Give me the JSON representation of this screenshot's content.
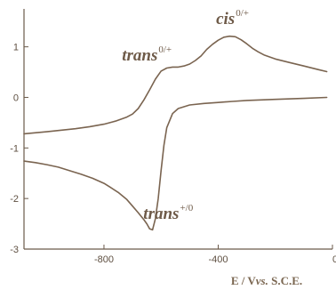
{
  "chart_data": {
    "type": "line",
    "title": "",
    "xlabel_parts": {
      "pre": "E / V",
      "italic": "vs.",
      "post": " S.C.E."
    },
    "ylabel": "",
    "xlim": [
      -1080,
      0
    ],
    "ylim": [
      -3,
      1.75
    ],
    "x_ticks": [
      -800,
      -400,
      0
    ],
    "x_tick_labels": [
      "-800",
      "-400",
      "0"
    ],
    "y_ticks": [
      -3,
      -2,
      -1,
      0,
      1
    ],
    "y_tick_labels": [
      "-3",
      "-2",
      "-1",
      "0",
      "1"
    ],
    "grid": false,
    "annotations": [
      {
        "text": "cis",
        "sup": "0/+",
        "x": -350,
        "y": 1.45
      },
      {
        "text": "trans",
        "sup": "0/+",
        "x": -650,
        "y": 0.73
      },
      {
        "text": "trans",
        "sup": "+/0",
        "x": -575,
        "y": -2.4
      }
    ],
    "series": [
      {
        "segment": "forward",
        "x": [
          -1080,
          -1000,
          -900,
          -850,
          -800,
          -760,
          -720,
          -700,
          -680,
          -660,
          -640,
          -620,
          -600,
          -580,
          -560,
          -540,
          -520,
          -500,
          -480,
          -460,
          -440,
          -420,
          -400,
          -380,
          -360,
          -340,
          -320,
          -300,
          -280,
          -260,
          -240,
          -200,
          -150,
          -100,
          -50,
          -20
        ],
        "y": [
          -0.72,
          -0.68,
          -0.62,
          -0.58,
          -0.53,
          -0.47,
          -0.39,
          -0.33,
          -0.22,
          -0.05,
          0.15,
          0.36,
          0.52,
          0.58,
          0.6,
          0.6,
          0.62,
          0.66,
          0.73,
          0.82,
          0.95,
          1.05,
          1.13,
          1.19,
          1.21,
          1.2,
          1.14,
          1.06,
          0.97,
          0.9,
          0.84,
          0.76,
          0.69,
          0.62,
          0.55,
          0.51
        ]
      },
      {
        "segment": "reverse",
        "x": [
          -20,
          -100,
          -200,
          -300,
          -350,
          -400,
          -450,
          -500,
          -540,
          -560,
          -580,
          -590,
          -600,
          -610,
          -620,
          -630,
          -640,
          -650,
          -660,
          -680,
          -700,
          -720,
          -750,
          -780,
          -800,
          -840,
          -880,
          -920,
          -960,
          -1000,
          -1040,
          -1080
        ],
        "y": [
          0.0,
          -0.02,
          -0.04,
          -0.06,
          -0.08,
          -0.1,
          -0.12,
          -0.15,
          -0.22,
          -0.32,
          -0.6,
          -0.95,
          -1.45,
          -2.0,
          -2.4,
          -2.62,
          -2.6,
          -2.5,
          -2.42,
          -2.28,
          -2.15,
          -2.02,
          -1.88,
          -1.77,
          -1.7,
          -1.6,
          -1.52,
          -1.45,
          -1.38,
          -1.33,
          -1.29,
          -1.26
        ]
      }
    ]
  },
  "colors": {
    "curve": "#7a6450",
    "axis": "#6b5a4a",
    "text": "#6e5a48"
  }
}
